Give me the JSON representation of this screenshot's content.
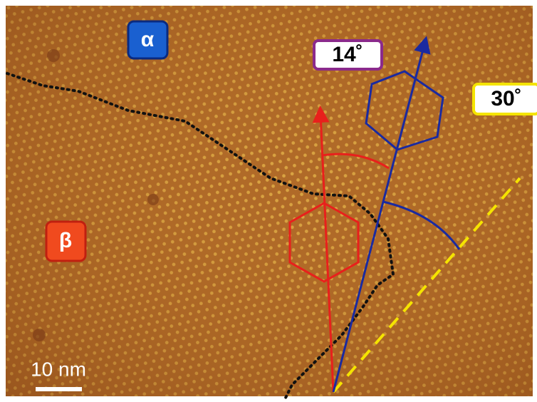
{
  "labels": {
    "alpha": "α",
    "beta": "β",
    "angle_blue": "14˚",
    "angle_yellow": "30˚",
    "scale_bar": "10 nm"
  }
}
